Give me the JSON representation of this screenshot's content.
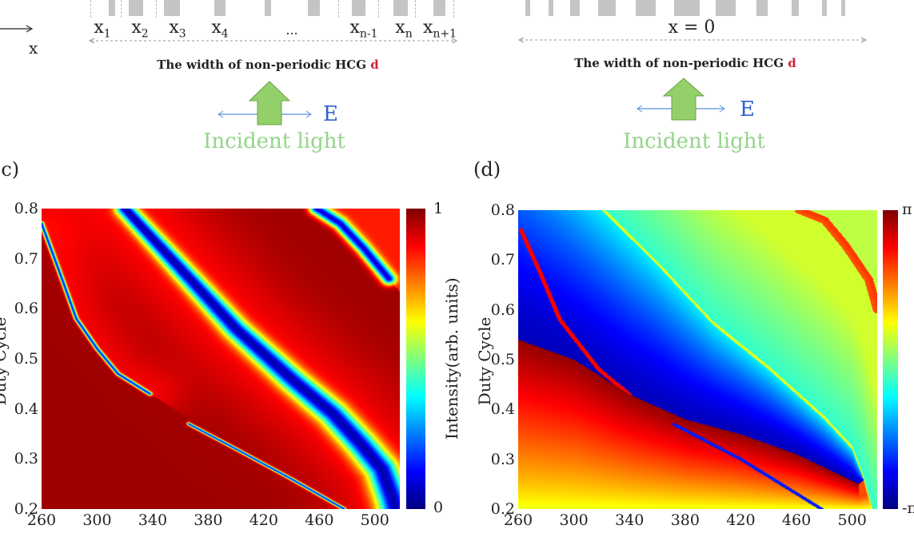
{
  "diagram": {
    "left": {
      "axis_arrow_label": "x",
      "positions": [
        {
          "base": "x",
          "sub": "1"
        },
        {
          "base": "x",
          "sub": "2"
        },
        {
          "base": "x",
          "sub": "3"
        },
        {
          "base": "x",
          "sub": "4"
        },
        {
          "base": "...",
          "sub": ""
        },
        {
          "base": "x",
          "sub": "n-1"
        },
        {
          "base": "x",
          "sub": "n"
        },
        {
          "base": "x",
          "sub": "n+1"
        }
      ],
      "caption": "The width of non-periodic HCG",
      "caption_var": "d",
      "field_label": "E",
      "incident_label": "Incident light"
    },
    "right": {
      "center_label": "x = 0",
      "caption": "The width of non-periodic HCG",
      "caption_var": "d",
      "field_label": "E",
      "incident_label": "Incident light"
    },
    "colors": {
      "grating": "#c4c4c4",
      "arrow_green": "#94d48a",
      "field_blue": "#3060d0",
      "d_red": "#d0203a"
    }
  },
  "chart_data": [
    {
      "panel_label": "(c)",
      "type": "heatmap",
      "colormap": "jet",
      "xlabel": "",
      "ylabel": "Duty Cycle",
      "xlim": [
        260,
        518
      ],
      "ylim": [
        0.2,
        0.8
      ],
      "xticks": [
        "260",
        "300",
        "340",
        "380",
        "420",
        "460",
        "500"
      ],
      "yticks": [
        "0.8",
        "0.7",
        "0.6",
        "0.5",
        "0.4",
        "0.3",
        "0.2"
      ],
      "colorbar": {
        "label": "Intensity(arb. units)",
        "min_label": "0",
        "max_label": "1",
        "range": [
          0,
          1
        ]
      },
      "features": {
        "main_low_band": [
          [
            320,
            0.8
          ],
          [
            360,
            0.68
          ],
          [
            400,
            0.56
          ],
          [
            440,
            0.46
          ],
          [
            470,
            0.39
          ],
          [
            490,
            0.33
          ],
          [
            505,
            0.28
          ],
          [
            513,
            0.22
          ],
          [
            515,
            0.2
          ]
        ],
        "thin_line_1": [
          [
            260,
            0.77
          ],
          [
            272,
            0.68
          ],
          [
            285,
            0.58
          ],
          [
            300,
            0.52
          ],
          [
            315,
            0.47
          ],
          [
            338,
            0.43
          ]
        ],
        "thin_line_2": [
          [
            366,
            0.37
          ],
          [
            400,
            0.32
          ],
          [
            440,
            0.26
          ],
          [
            478,
            0.2
          ]
        ],
        "top_right_band": [
          [
            458,
            0.8
          ],
          [
            475,
            0.77
          ],
          [
            492,
            0.72
          ],
          [
            510,
            0.66
          ]
        ]
      }
    },
    {
      "panel_label": "(d)",
      "type": "heatmap",
      "colormap": "jet",
      "xlabel": "",
      "ylabel": "Duty Cycle",
      "xlim": [
        260,
        518
      ],
      "ylim": [
        0.2,
        0.8
      ],
      "xticks": [
        "260",
        "300",
        "340",
        "380",
        "420",
        "460",
        "500"
      ],
      "yticks": [
        "0.8",
        "0.7",
        "0.6",
        "0.5",
        "0.4",
        "0.3",
        "0.2"
      ],
      "colorbar": {
        "label": "",
        "min_label": "-π",
        "max_label": "π",
        "range": [
          -3.1416,
          3.1416
        ]
      },
      "features": {
        "phase_jump": [
          [
            320,
            0.8
          ],
          [
            360,
            0.69
          ],
          [
            400,
            0.57
          ],
          [
            440,
            0.48
          ],
          [
            480,
            0.38
          ],
          [
            500,
            0.32
          ],
          [
            507,
            0.27
          ],
          [
            509,
            0.25
          ]
        ],
        "lower_boundary": [
          [
            260,
            0.54
          ],
          [
            300,
            0.5
          ],
          [
            340,
            0.43
          ],
          [
            380,
            0.38
          ],
          [
            420,
            0.35
          ],
          [
            460,
            0.31
          ],
          [
            505,
            0.25
          ],
          [
            518,
            0.28
          ]
        ],
        "thin_line_1": [
          [
            262,
            0.76
          ],
          [
            275,
            0.68
          ],
          [
            290,
            0.58
          ],
          [
            318,
            0.48
          ],
          [
            340,
            0.43
          ]
        ],
        "thin_line_2": [
          [
            372,
            0.37
          ],
          [
            420,
            0.3
          ],
          [
            478,
            0.2
          ]
        ],
        "top_right_edge": [
          [
            462,
            0.8
          ],
          [
            480,
            0.78
          ],
          [
            495,
            0.73
          ],
          [
            512,
            0.66
          ],
          [
            518,
            0.6
          ]
        ]
      }
    }
  ]
}
